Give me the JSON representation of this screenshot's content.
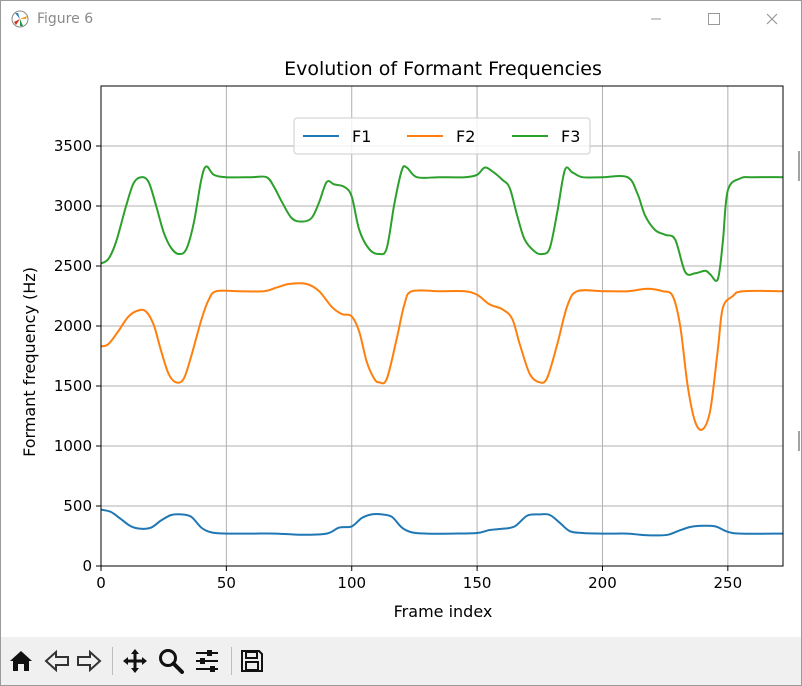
{
  "window": {
    "title": "Figure 6",
    "controls": {
      "minimize": "minimize",
      "maximize": "maximize",
      "close": "close"
    }
  },
  "toolbar": {
    "buttons": [
      "home-icon",
      "back-icon",
      "forward-icon",
      "pan-icon",
      "zoom-icon",
      "configure-subplots-icon",
      "save-icon"
    ]
  },
  "chart_data": {
    "type": "line",
    "title": "Evolution of Formant Frequencies",
    "xlabel": "Frame index",
    "ylabel": "Formant frequency (Hz)",
    "xlim": [
      0,
      272
    ],
    "ylim": [
      0,
      4000
    ],
    "xticks": [
      0,
      50,
      100,
      150,
      200,
      250
    ],
    "yticks": [
      0,
      500,
      1000,
      1500,
      2000,
      2500,
      3000,
      3500
    ],
    "grid": true,
    "legend_position": "top-center",
    "series": [
      {
        "name": "F1",
        "color": "#1f77b4",
        "points": [
          [
            0,
            470
          ],
          [
            4,
            450
          ],
          [
            8,
            390
          ],
          [
            12,
            330
          ],
          [
            16,
            310
          ],
          [
            20,
            320
          ],
          [
            24,
            380
          ],
          [
            28,
            425
          ],
          [
            32,
            430
          ],
          [
            36,
            410
          ],
          [
            40,
            320
          ],
          [
            44,
            280
          ],
          [
            50,
            270
          ],
          [
            60,
            270
          ],
          [
            70,
            270
          ],
          [
            80,
            260
          ],
          [
            90,
            270
          ],
          [
            95,
            320
          ],
          [
            100,
            330
          ],
          [
            104,
            400
          ],
          [
            108,
            430
          ],
          [
            112,
            430
          ],
          [
            116,
            410
          ],
          [
            120,
            320
          ],
          [
            124,
            280
          ],
          [
            130,
            270
          ],
          [
            140,
            270
          ],
          [
            150,
            275
          ],
          [
            155,
            300
          ],
          [
            160,
            310
          ],
          [
            165,
            330
          ],
          [
            170,
            420
          ],
          [
            175,
            430
          ],
          [
            179,
            425
          ],
          [
            183,
            360
          ],
          [
            187,
            290
          ],
          [
            192,
            275
          ],
          [
            200,
            270
          ],
          [
            210,
            270
          ],
          [
            215,
            260
          ],
          [
            220,
            255
          ],
          [
            226,
            260
          ],
          [
            230,
            290
          ],
          [
            235,
            325
          ],
          [
            240,
            335
          ],
          [
            245,
            330
          ],
          [
            250,
            285
          ],
          [
            255,
            270
          ],
          [
            272,
            270
          ]
        ]
      },
      {
        "name": "F2",
        "color": "#ff7f0e",
        "points": [
          [
            0,
            1830
          ],
          [
            3,
            1850
          ],
          [
            7,
            1960
          ],
          [
            11,
            2080
          ],
          [
            15,
            2130
          ],
          [
            18,
            2120
          ],
          [
            21,
            2010
          ],
          [
            24,
            1790
          ],
          [
            27,
            1600
          ],
          [
            30,
            1530
          ],
          [
            33,
            1560
          ],
          [
            36,
            1750
          ],
          [
            40,
            2050
          ],
          [
            43,
            2220
          ],
          [
            46,
            2290
          ],
          [
            55,
            2290
          ],
          [
            65,
            2290
          ],
          [
            70,
            2320
          ],
          [
            75,
            2350
          ],
          [
            82,
            2350
          ],
          [
            87,
            2290
          ],
          [
            92,
            2160
          ],
          [
            96,
            2100
          ],
          [
            100,
            2080
          ],
          [
            103,
            1950
          ],
          [
            106,
            1700
          ],
          [
            109,
            1560
          ],
          [
            111,
            1530
          ],
          [
            114,
            1560
          ],
          [
            118,
            1900
          ],
          [
            121,
            2180
          ],
          [
            124,
            2290
          ],
          [
            135,
            2290
          ],
          [
            145,
            2290
          ],
          [
            150,
            2260
          ],
          [
            155,
            2180
          ],
          [
            160,
            2140
          ],
          [
            164,
            2060
          ],
          [
            167,
            1850
          ],
          [
            171,
            1600
          ],
          [
            175,
            1530
          ],
          [
            178,
            1570
          ],
          [
            182,
            1850
          ],
          [
            186,
            2170
          ],
          [
            190,
            2290
          ],
          [
            200,
            2290
          ],
          [
            210,
            2290
          ],
          [
            218,
            2310
          ],
          [
            224,
            2290
          ],
          [
            228,
            2250
          ],
          [
            231,
            2000
          ],
          [
            234,
            1500
          ],
          [
            237,
            1200
          ],
          [
            240,
            1140
          ],
          [
            243,
            1300
          ],
          [
            246,
            1800
          ],
          [
            248,
            2150
          ],
          [
            252,
            2250
          ],
          [
            256,
            2290
          ],
          [
            272,
            2290
          ]
        ]
      },
      {
        "name": "F3",
        "color": "#2ca02c",
        "points": [
          [
            0,
            2520
          ],
          [
            3,
            2560
          ],
          [
            6,
            2700
          ],
          [
            10,
            3000
          ],
          [
            13,
            3190
          ],
          [
            16,
            3240
          ],
          [
            19,
            3200
          ],
          [
            22,
            3000
          ],
          [
            25,
            2780
          ],
          [
            28,
            2650
          ],
          [
            31,
            2600
          ],
          [
            34,
            2640
          ],
          [
            37,
            2860
          ],
          [
            40,
            3220
          ],
          [
            42,
            3330
          ],
          [
            45,
            3260
          ],
          [
            50,
            3240
          ],
          [
            60,
            3240
          ],
          [
            66,
            3240
          ],
          [
            69,
            3160
          ],
          [
            72,
            3040
          ],
          [
            76,
            2900
          ],
          [
            80,
            2870
          ],
          [
            84,
            2900
          ],
          [
            87,
            3030
          ],
          [
            90,
            3200
          ],
          [
            93,
            3180
          ],
          [
            97,
            3160
          ],
          [
            100,
            3080
          ],
          [
            103,
            2800
          ],
          [
            107,
            2640
          ],
          [
            111,
            2600
          ],
          [
            114,
            2650
          ],
          [
            117,
            3020
          ],
          [
            120,
            3300
          ],
          [
            122,
            3320
          ],
          [
            126,
            3240
          ],
          [
            135,
            3240
          ],
          [
            145,
            3240
          ],
          [
            150,
            3260
          ],
          [
            153,
            3320
          ],
          [
            156,
            3290
          ],
          [
            160,
            3220
          ],
          [
            163,
            3150
          ],
          [
            166,
            2920
          ],
          [
            169,
            2720
          ],
          [
            173,
            2620
          ],
          [
            176,
            2600
          ],
          [
            179,
            2650
          ],
          [
            182,
            2950
          ],
          [
            185,
            3300
          ],
          [
            188,
            3280
          ],
          [
            192,
            3240
          ],
          [
            200,
            3240
          ],
          [
            210,
            3240
          ],
          [
            214,
            3100
          ],
          [
            217,
            2920
          ],
          [
            221,
            2800
          ],
          [
            225,
            2760
          ],
          [
            229,
            2720
          ],
          [
            233,
            2450
          ],
          [
            237,
            2440
          ],
          [
            241,
            2460
          ],
          [
            243,
            2430
          ],
          [
            246,
            2390
          ],
          [
            248,
            2700
          ],
          [
            250,
            3130
          ],
          [
            255,
            3230
          ],
          [
            260,
            3240
          ],
          [
            272,
            3240
          ]
        ]
      }
    ]
  }
}
